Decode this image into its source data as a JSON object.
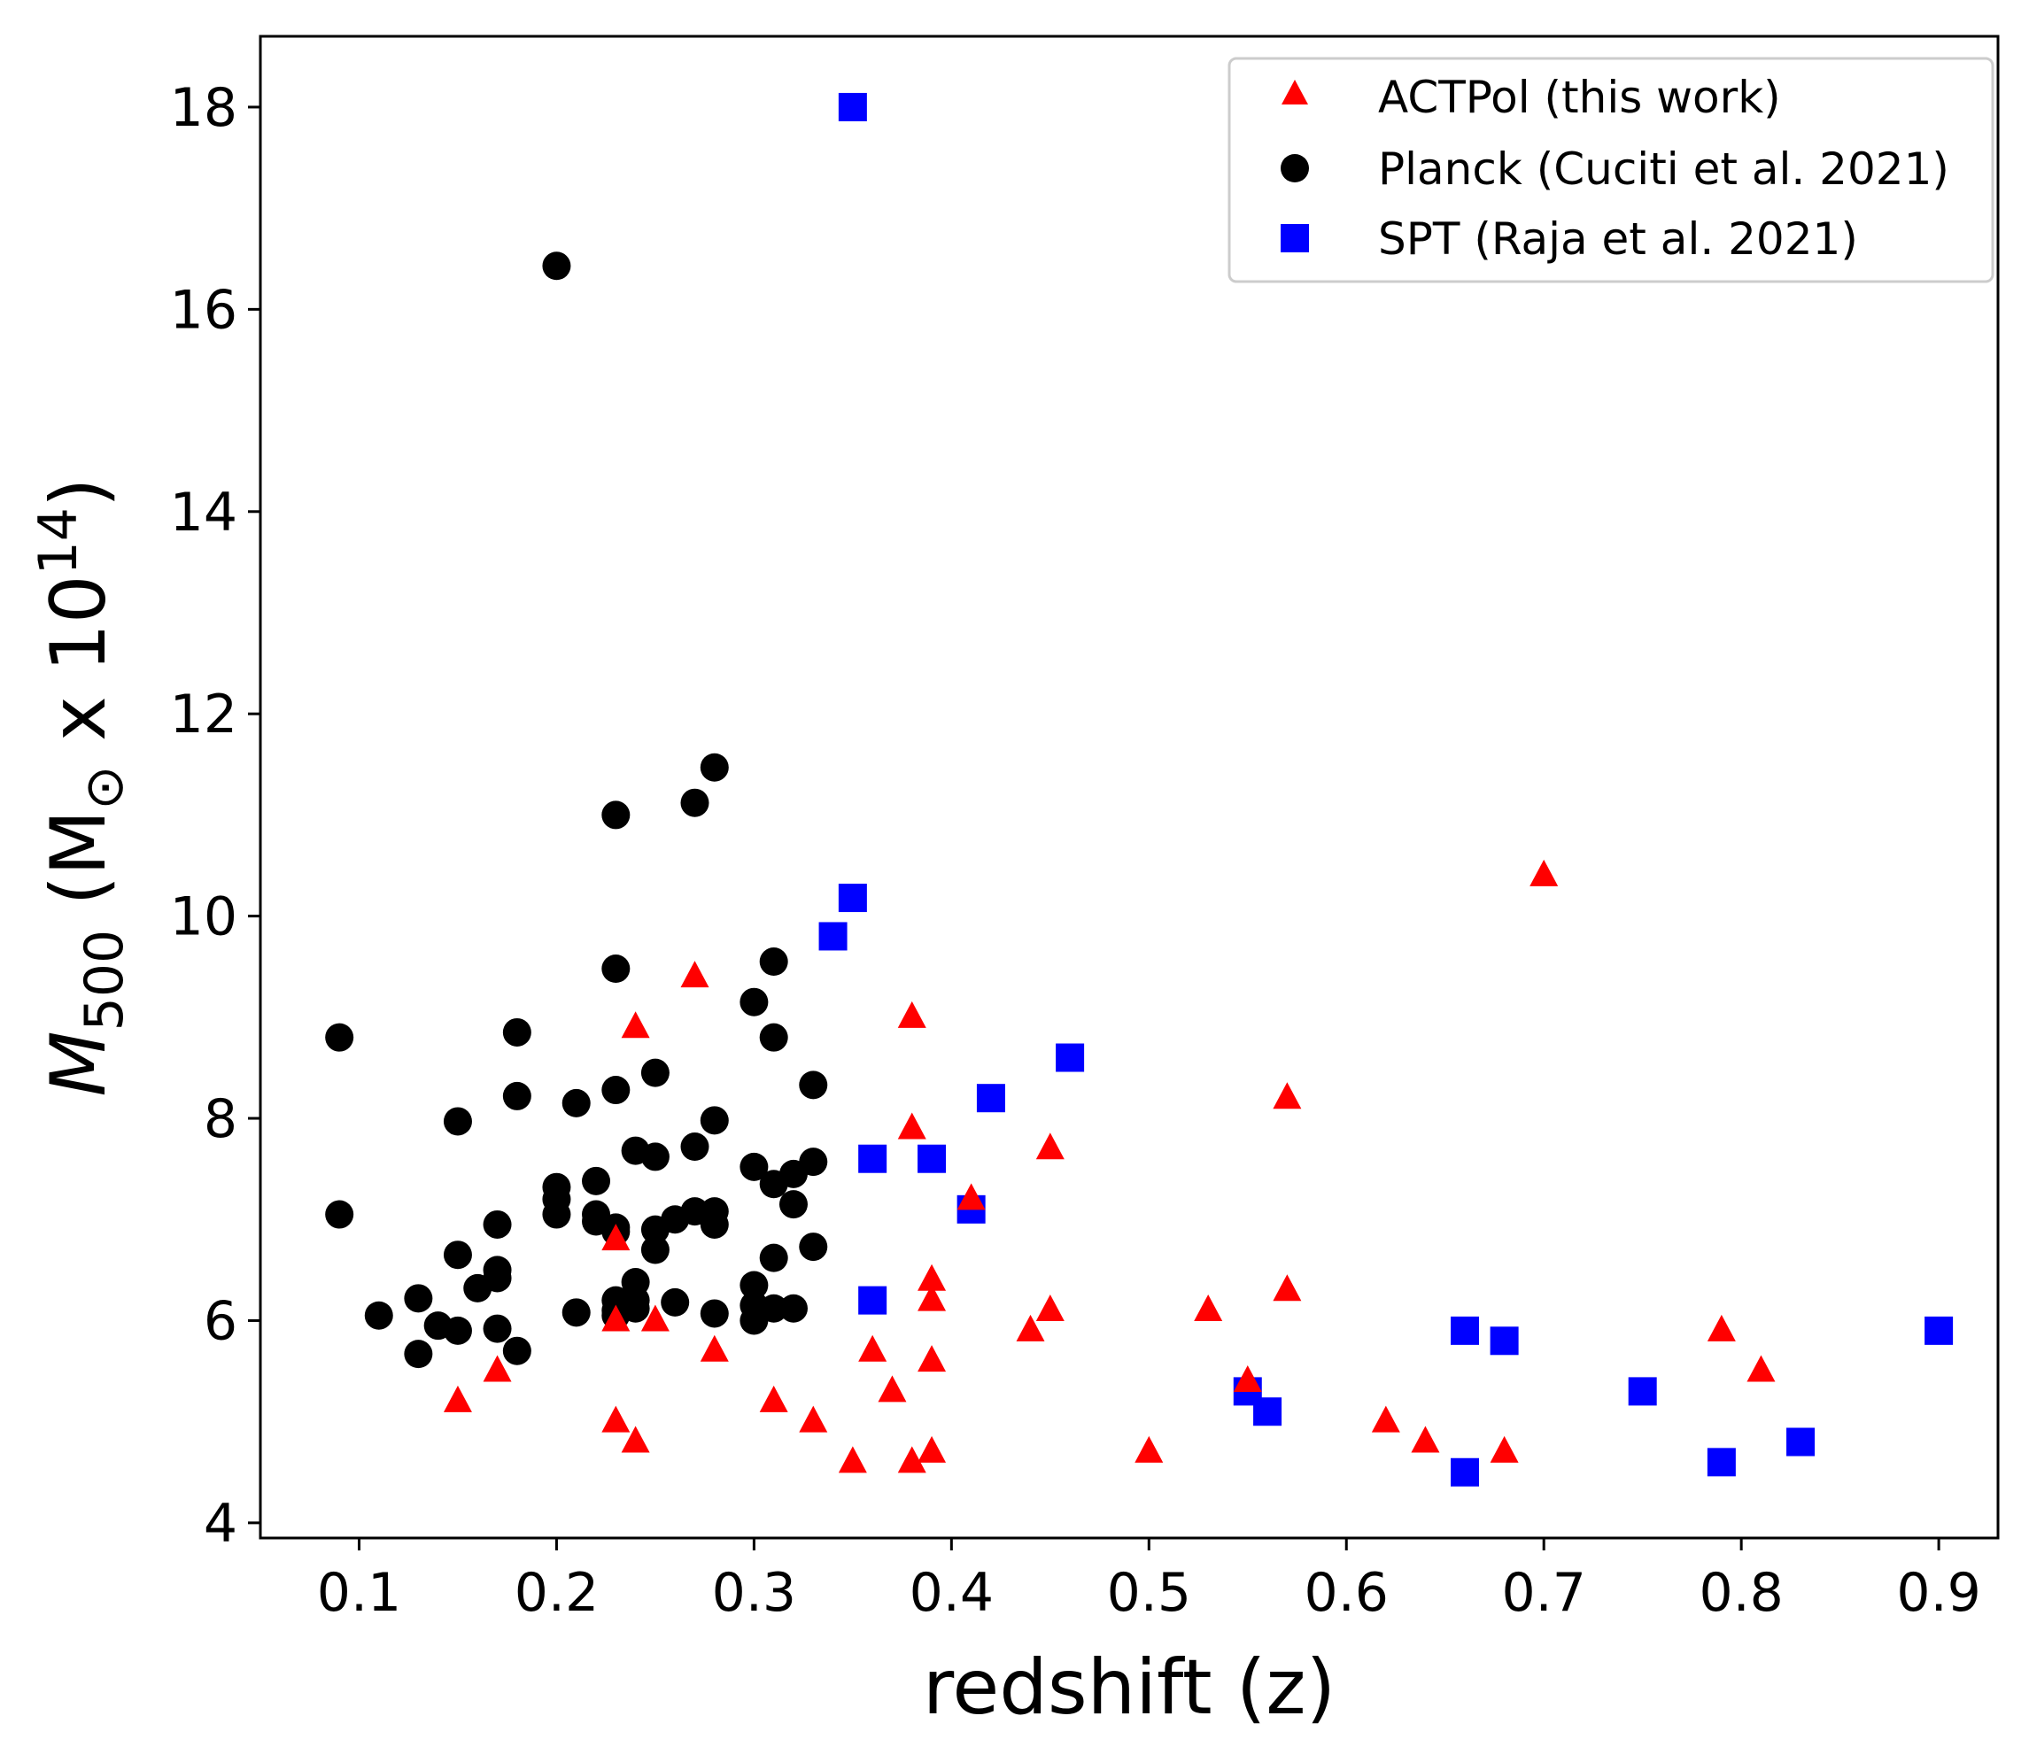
{
  "chart_data": {
    "type": "scatter",
    "xlabel": "redshift (z)",
    "ylabel": {
      "main": "M",
      "sub": "500",
      "unit_open": " (M",
      "sun": "⊙",
      "times": " x 10",
      "exp": "14",
      "unit_close": ")"
    },
    "xlim": [
      0.05,
      0.93
    ],
    "ylim": [
      3.85,
      18.7
    ],
    "xticks": [
      0.1,
      0.2,
      0.3,
      0.4,
      0.5,
      0.6,
      0.7,
      0.8,
      0.9
    ],
    "xtick_labels": [
      "0.1",
      "0.2",
      "0.3",
      "0.4",
      "0.5",
      "0.6",
      "0.7",
      "0.8",
      "0.9"
    ],
    "yticks": [
      4,
      6,
      8,
      10,
      12,
      14,
      16,
      18
    ],
    "ytick_labels": [
      "4",
      "6",
      "8",
      "10",
      "12",
      "14",
      "16",
      "18"
    ],
    "legend_position": "top-right",
    "series": [
      {
        "name": "ACTPol (this work)",
        "marker": "triangle",
        "color": "#ff0000",
        "points": [
          [
            0.15,
            5.2
          ],
          [
            0.17,
            5.5
          ],
          [
            0.23,
            5.0
          ],
          [
            0.23,
            6.0
          ],
          [
            0.23,
            6.8
          ],
          [
            0.24,
            8.9
          ],
          [
            0.24,
            4.8
          ],
          [
            0.25,
            6.0
          ],
          [
            0.27,
            9.4
          ],
          [
            0.28,
            5.7
          ],
          [
            0.31,
            5.2
          ],
          [
            0.33,
            5.0
          ],
          [
            0.35,
            4.6
          ],
          [
            0.36,
            5.7
          ],
          [
            0.37,
            5.3
          ],
          [
            0.38,
            9.0
          ],
          [
            0.38,
            7.9
          ],
          [
            0.38,
            4.6
          ],
          [
            0.39,
            6.4
          ],
          [
            0.39,
            6.2
          ],
          [
            0.39,
            5.6
          ],
          [
            0.39,
            4.7
          ],
          [
            0.41,
            7.2
          ],
          [
            0.44,
            5.9
          ],
          [
            0.45,
            7.7
          ],
          [
            0.45,
            6.1
          ],
          [
            0.5,
            4.7
          ],
          [
            0.53,
            6.1
          ],
          [
            0.55,
            5.4
          ],
          [
            0.57,
            8.2
          ],
          [
            0.57,
            6.3
          ],
          [
            0.62,
            5.0
          ],
          [
            0.64,
            4.8
          ],
          [
            0.68,
            4.7
          ],
          [
            0.7,
            10.4
          ],
          [
            0.79,
            5.9
          ],
          [
            0.81,
            5.5
          ]
        ]
      },
      {
        "name": "Planck (Cuciti et al. 2021)",
        "marker": "circle",
        "color": "#000000",
        "points": [
          [
            0.09,
            8.8
          ],
          [
            0.09,
            7.05
          ],
          [
            0.11,
            6.05
          ],
          [
            0.13,
            6.22
          ],
          [
            0.13,
            5.67
          ],
          [
            0.14,
            5.95
          ],
          [
            0.15,
            7.97
          ],
          [
            0.15,
            6.65
          ],
          [
            0.15,
            5.9
          ],
          [
            0.16,
            6.32
          ],
          [
            0.17,
            6.95
          ],
          [
            0.17,
            6.5
          ],
          [
            0.17,
            6.42
          ],
          [
            0.17,
            5.92
          ],
          [
            0.18,
            8.85
          ],
          [
            0.18,
            8.22
          ],
          [
            0.18,
            5.7
          ],
          [
            0.2,
            16.43
          ],
          [
            0.2,
            7.32
          ],
          [
            0.2,
            7.2
          ],
          [
            0.2,
            7.05
          ],
          [
            0.21,
            8.15
          ],
          [
            0.21,
            6.08
          ],
          [
            0.22,
            7.38
          ],
          [
            0.22,
            7.05
          ],
          [
            0.22,
            6.98
          ],
          [
            0.23,
            11.0
          ],
          [
            0.23,
            9.48
          ],
          [
            0.23,
            8.28
          ],
          [
            0.23,
            6.92
          ],
          [
            0.23,
            6.88
          ],
          [
            0.23,
            6.2
          ],
          [
            0.23,
            6.1
          ],
          [
            0.23,
            6.05
          ],
          [
            0.24,
            7.68
          ],
          [
            0.24,
            6.38
          ],
          [
            0.24,
            6.2
          ],
          [
            0.24,
            6.12
          ],
          [
            0.25,
            8.45
          ],
          [
            0.25,
            7.62
          ],
          [
            0.25,
            6.9
          ],
          [
            0.25,
            6.7
          ],
          [
            0.26,
            7.0
          ],
          [
            0.26,
            6.18
          ],
          [
            0.27,
            11.12
          ],
          [
            0.27,
            7.72
          ],
          [
            0.27,
            7.08
          ],
          [
            0.28,
            11.47
          ],
          [
            0.28,
            7.98
          ],
          [
            0.28,
            7.08
          ],
          [
            0.28,
            6.95
          ],
          [
            0.28,
            6.07
          ],
          [
            0.3,
            9.15
          ],
          [
            0.3,
            7.52
          ],
          [
            0.3,
            6.35
          ],
          [
            0.3,
            6.15
          ],
          [
            0.3,
            6.0
          ],
          [
            0.31,
            9.55
          ],
          [
            0.31,
            8.8
          ],
          [
            0.31,
            7.35
          ],
          [
            0.31,
            6.62
          ],
          [
            0.31,
            6.12
          ],
          [
            0.32,
            7.45
          ],
          [
            0.32,
            7.15
          ],
          [
            0.32,
            6.12
          ],
          [
            0.33,
            8.33
          ],
          [
            0.33,
            7.57
          ],
          [
            0.33,
            6.73
          ]
        ]
      },
      {
        "name": "SPT (Raja et al. 2021)",
        "marker": "square",
        "color": "#0000ff",
        "points": [
          [
            0.35,
            18.0
          ],
          [
            0.35,
            10.18
          ],
          [
            0.34,
            9.8
          ],
          [
            0.36,
            7.6
          ],
          [
            0.36,
            6.2
          ],
          [
            0.39,
            7.6
          ],
          [
            0.41,
            7.1
          ],
          [
            0.42,
            8.2
          ],
          [
            0.46,
            8.6
          ],
          [
            0.55,
            5.3
          ],
          [
            0.56,
            5.1
          ],
          [
            0.66,
            5.9
          ],
          [
            0.66,
            4.5
          ],
          [
            0.68,
            5.8
          ],
          [
            0.75,
            5.3
          ],
          [
            0.79,
            4.6
          ],
          [
            0.83,
            4.8
          ],
          [
            0.9,
            5.9
          ]
        ]
      }
    ]
  }
}
